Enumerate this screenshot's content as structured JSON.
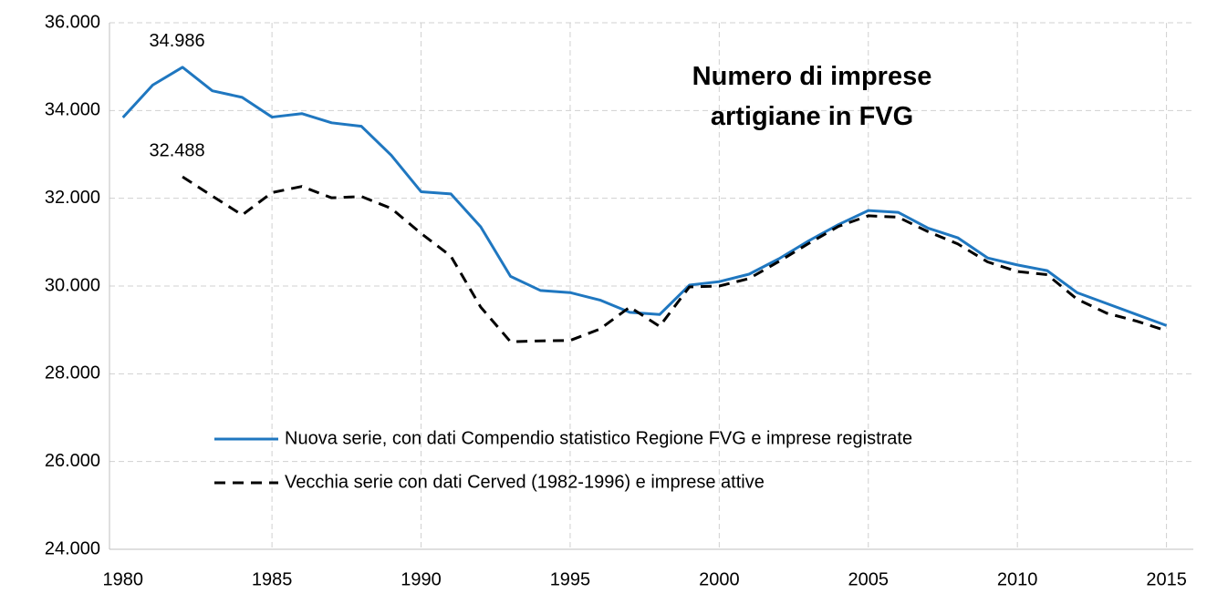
{
  "chart_data": {
    "type": "line",
    "title": "Numero di imprese artigiane in FVG",
    "x": [
      1980,
      1981,
      1982,
      1983,
      1984,
      1985,
      1986,
      1987,
      1988,
      1989,
      1990,
      1991,
      1992,
      1993,
      1994,
      1995,
      1996,
      1997,
      1998,
      1999,
      2000,
      2001,
      2002,
      2003,
      2004,
      2005,
      2006,
      2007,
      2008,
      2009,
      2010,
      2011,
      2012,
      2013,
      2014,
      2015
    ],
    "series": [
      {
        "name": "Nuova serie, con dati Compendio statistico Regione FVG e imprese registrate",
        "color": "#1f77c0",
        "dash": false,
        "values": [
          33840,
          34580,
          34986,
          34450,
          34300,
          33850,
          33930,
          33720,
          33640,
          32980,
          32150,
          32100,
          31350,
          30220,
          29900,
          29850,
          29680,
          29400,
          29350,
          30020,
          30100,
          30270,
          30620,
          31030,
          31400,
          31720,
          31680,
          31320,
          31100,
          30640,
          30480,
          30350,
          29850,
          29600,
          29350,
          29100
        ],
        "value_labels": [
          null,
          null,
          "34.986",
          null,
          null,
          null,
          null,
          null,
          null,
          null,
          null,
          null,
          null,
          null,
          null,
          null,
          null,
          null,
          null,
          null,
          null,
          null,
          null,
          null,
          null,
          null,
          null,
          null,
          null,
          null,
          null,
          null,
          null,
          null,
          null,
          null
        ]
      },
      {
        "name": "Vecchia serie con dati Cerved (1982-1996) e imprese attive",
        "color": "#000000",
        "dash": true,
        "values": [
          null,
          null,
          32488,
          32050,
          31620,
          32130,
          32270,
          32010,
          32040,
          31770,
          31200,
          30680,
          29520,
          28730,
          28750,
          28760,
          29020,
          29520,
          29080,
          29980,
          30000,
          30170,
          30560,
          30970,
          31360,
          31600,
          31570,
          31240,
          30960,
          30550,
          30330,
          30260,
          29700,
          29380,
          29200,
          28980
        ],
        "value_labels": [
          null,
          null,
          "32.488",
          null,
          null,
          null,
          null,
          null,
          null,
          null,
          null,
          null,
          null,
          null,
          null,
          null,
          null,
          null,
          null,
          null,
          null,
          null,
          null,
          null,
          null,
          null,
          null,
          null,
          null,
          null,
          null,
          null,
          null,
          null,
          null,
          null
        ]
      }
    ],
    "xlim": [
      1979.55,
      2015.9
    ],
    "xticks": [
      1980,
      1985,
      1990,
      1995,
      2000,
      2005,
      2010,
      2015
    ],
    "ylim": [
      24000,
      36000
    ],
    "yticks": [
      {
        "value": 24000,
        "label": "24.000"
      },
      {
        "value": 26000,
        "label": "26.000"
      },
      {
        "value": 28000,
        "label": "28.000"
      },
      {
        "value": 30000,
        "label": "30.000"
      },
      {
        "value": 32000,
        "label": "32.000"
      },
      {
        "value": 34000,
        "label": "34.000"
      },
      {
        "value": 36000,
        "label": "36.000"
      }
    ],
    "grid": true,
    "legend": "lower center"
  }
}
